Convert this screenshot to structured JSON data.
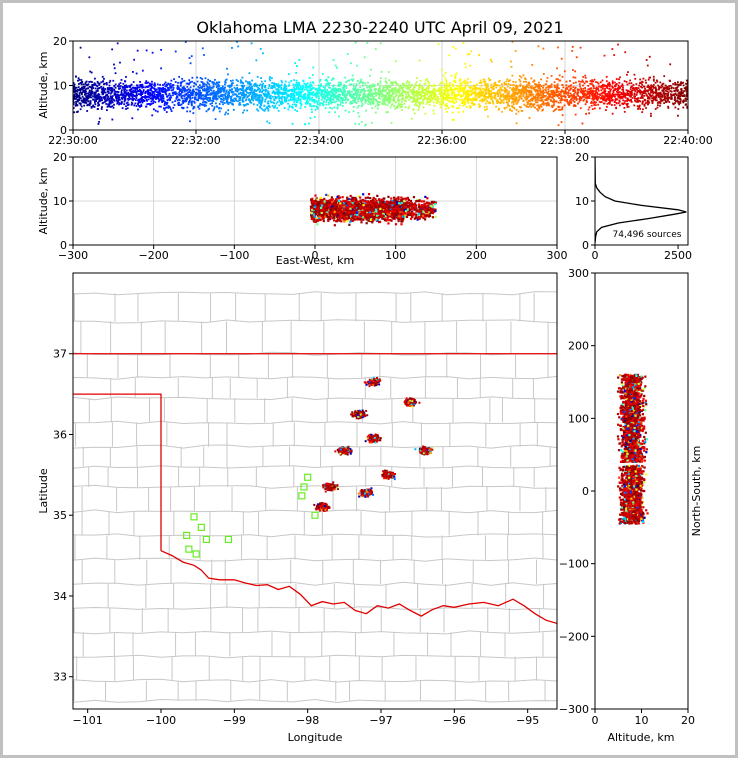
{
  "figure": {
    "title": "Oklahoma LMA 2230-2240 UTC April 09, 2021",
    "source_count_label": "74,496 sources",
    "accent_colors": [
      "#00007f",
      "#0000ff",
      "#00ffff",
      "#7fff7f",
      "#ffff00",
      "#ff7f00",
      "#ff0000",
      "#7f0000"
    ]
  },
  "chart_data": [
    {
      "id": "time_height",
      "type": "scatter",
      "title": "Oklahoma LMA 2230-2240 UTC April 09, 2021",
      "ylabel": "Altitude, km",
      "xlabel": "",
      "x_tick_labels": [
        "22:30:00",
        "22:32:00",
        "22:34:00",
        "22:36:00",
        "22:38:00",
        "22:40:00"
      ],
      "y_tick_labels": [
        "0",
        "10",
        "20"
      ],
      "xlim": [
        "22:30:00",
        "22:40:00"
      ],
      "ylim": [
        0,
        20
      ],
      "grid": true,
      "colormap": "jet (by time)",
      "altitude_band_km": [
        2,
        15
      ]
    },
    {
      "id": "ew_height",
      "type": "scatter",
      "xlabel": "East-West, km",
      "ylabel": "Altitude, km",
      "x_tick_labels": [
        "−300",
        "−200",
        "−100",
        "0",
        "100",
        "200",
        "300"
      ],
      "y_tick_labels": [
        "0",
        "10",
        "20"
      ],
      "xlim": [
        -300,
        300
      ],
      "ylim": [
        0,
        20
      ],
      "grid": true,
      "clusters": [
        {
          "x_range": [
            -5,
            40
          ],
          "alt_range": [
            2,
            16
          ]
        },
        {
          "x_range": [
            40,
            110
          ],
          "alt_range": [
            2,
            16
          ]
        },
        {
          "x_range": [
            100,
            150
          ],
          "alt_range": [
            4,
            14
          ]
        }
      ]
    },
    {
      "id": "altitude_histogram",
      "type": "line",
      "xlabel": "",
      "ylabel": "",
      "x_tick_labels": [
        "0",
        "2500"
      ],
      "y_tick_labels": [
        "0",
        "10",
        "20"
      ],
      "xlim": [
        0,
        2800
      ],
      "ylim": [
        0,
        20
      ],
      "annotation": "74,496 sources",
      "profile": [
        {
          "alt": 0.5,
          "count": 0
        },
        {
          "alt": 2,
          "count": 20
        },
        {
          "alt": 3,
          "count": 50
        },
        {
          "alt": 4,
          "count": 200
        },
        {
          "alt": 5,
          "count": 700
        },
        {
          "alt": 6,
          "count": 1600
        },
        {
          "alt": 7,
          "count": 2400
        },
        {
          "alt": 7.5,
          "count": 2750
        },
        {
          "alt": 8,
          "count": 2500
        },
        {
          "alt": 9,
          "count": 1400
        },
        {
          "alt": 10,
          "count": 600
        },
        {
          "alt": 11,
          "count": 300
        },
        {
          "alt": 12,
          "count": 150
        },
        {
          "alt": 13,
          "count": 50
        },
        {
          "alt": 14,
          "count": 10
        },
        {
          "alt": 20,
          "count": 0
        }
      ]
    },
    {
      "id": "plan_view",
      "type": "scatter",
      "xlabel": "Longitude",
      "ylabel": "Latitude",
      "x_tick_labels": [
        "−101",
        "−100",
        "−99",
        "−98",
        "−97",
        "−96",
        "−95"
      ],
      "y_tick_labels": [
        "33",
        "34",
        "35",
        "36",
        "37"
      ],
      "xlim": [
        -101.2,
        -94.6
      ],
      "ylim": [
        32.6,
        38.0
      ],
      "grid": false,
      "storm_cells": [
        {
          "lon": -97.1,
          "lat": 36.65
        },
        {
          "lon": -96.6,
          "lat": 36.4
        },
        {
          "lon": -97.3,
          "lat": 36.25
        },
        {
          "lon": -97.1,
          "lat": 35.95
        },
        {
          "lon": -97.5,
          "lat": 35.8
        },
        {
          "lon": -96.9,
          "lat": 35.5
        },
        {
          "lon": -96.4,
          "lat": 35.8
        },
        {
          "lon": -97.2,
          "lat": 35.28
        },
        {
          "lon": -97.8,
          "lat": 35.1
        },
        {
          "lon": -97.7,
          "lat": 35.35
        }
      ],
      "stations": [
        {
          "lon": -99.55,
          "lat": 34.98
        },
        {
          "lon": -99.45,
          "lat": 34.85
        },
        {
          "lon": -99.65,
          "lat": 34.75
        },
        {
          "lon": -99.38,
          "lat": 34.7
        },
        {
          "lon": -99.08,
          "lat": 34.7
        },
        {
          "lon": -99.62,
          "lat": 34.58
        },
        {
          "lon": -99.52,
          "lat": 34.52
        },
        {
          "lon": -98.0,
          "lat": 35.47
        },
        {
          "lon": -98.05,
          "lat": 35.35
        },
        {
          "lon": -98.08,
          "lat": 35.24
        },
        {
          "lon": -97.9,
          "lat": 35.0
        }
      ]
    },
    {
      "id": "ns_height",
      "type": "scatter",
      "xlabel": "Altitude, km",
      "ylabel": "North-South, km",
      "x_tick_labels": [
        "0",
        "10",
        "20"
      ],
      "y_tick_labels": [
        "300",
        "200",
        "100",
        "0",
        "−100",
        "−200",
        "−300"
      ],
      "xlim": [
        0,
        20
      ],
      "ylim": [
        -300,
        300
      ],
      "grid": false
    }
  ]
}
